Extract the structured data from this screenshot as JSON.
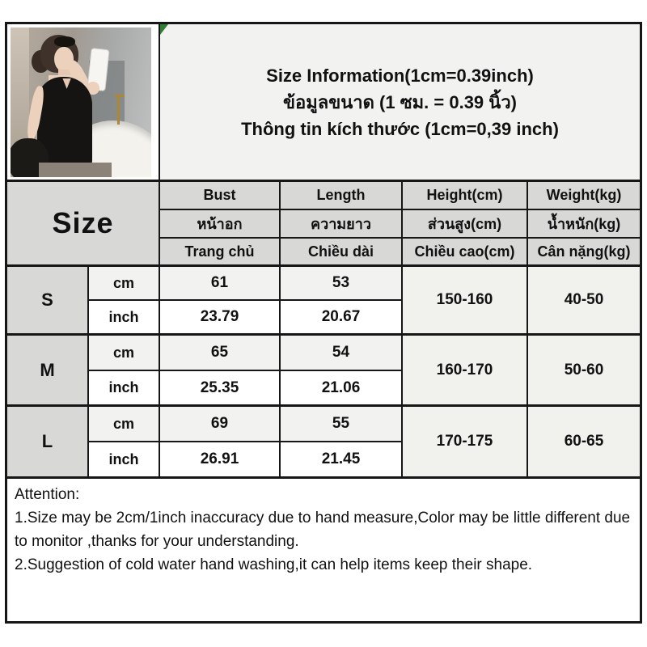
{
  "title": {
    "line_en": "Size Information(1cm=0.39inch)",
    "line_th": "ข้อมูลขนาด (1 ซม. = 0.39 นิ้ว)",
    "line_vi": "Thông tin kích thước (1cm=0,39 inch)"
  },
  "photo": {
    "description": "model-mirror-selfie-black-tank-top"
  },
  "table": {
    "size_label": "Size",
    "columns": {
      "bust": {
        "en": "Bust",
        "th": "หน้าอก",
        "vi": "Trang chủ"
      },
      "length": {
        "en": "Length",
        "th": "ความยาว",
        "vi": "Chiều dài"
      },
      "height": {
        "en": "Height(cm)",
        "th": "ส่วนสูง(cm)",
        "vi": "Chiều cao(cm)"
      },
      "weight": {
        "en": "Weight(kg)",
        "th": "น้ำหนัก(kg)",
        "vi": "Cân nặng(kg)"
      }
    },
    "unit_labels": {
      "cm": "cm",
      "inch": "inch"
    },
    "rows": [
      {
        "size": "S",
        "cm": {
          "bust": "61",
          "length": "53"
        },
        "inch": {
          "bust": "23.79",
          "length": "20.67"
        },
        "height": "150-160",
        "weight": "40-50"
      },
      {
        "size": "M",
        "cm": {
          "bust": "65",
          "length": "54"
        },
        "inch": {
          "bust": "25.35",
          "length": "21.06"
        },
        "height": "160-170",
        "weight": "50-60"
      },
      {
        "size": "L",
        "cm": {
          "bust": "69",
          "length": "55"
        },
        "inch": {
          "bust": "26.91",
          "length": "21.45"
        },
        "height": "170-175",
        "weight": "60-65"
      }
    ]
  },
  "attention": {
    "title": "Attention:",
    "note1": "1.Size may be 2cm/1inch inaccuracy due to hand measure,Color may be little different due to monitor ,thanks for your understanding.",
    "note2": "2.Suggestion of cold water hand washing,it can help items keep their shape."
  },
  "colors": {
    "border": "#161616",
    "header_gray": "#d8d8d6",
    "row_cm_gray": "#f2f2f0",
    "merged_gray": "#f1f1ee",
    "corner_marker_green": "#2e7d32"
  }
}
